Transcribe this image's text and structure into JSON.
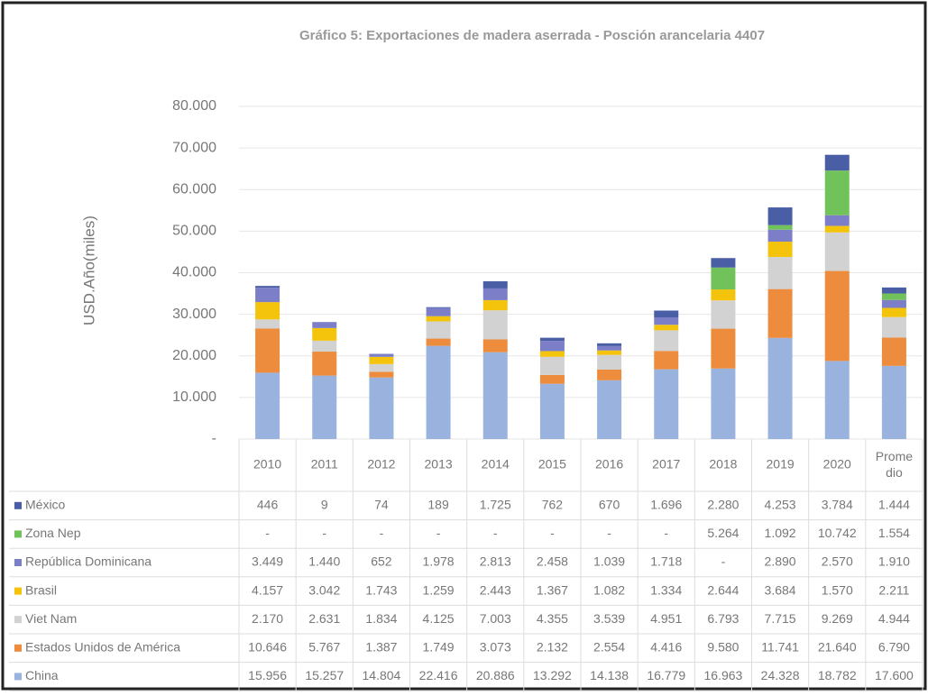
{
  "chart_data": {
    "type": "stacked_bar",
    "title": "Gráfico 5: Exportaciones de madera aserrada - Posción arancelaria 4407",
    "ylabel": "USD.Año(miles)",
    "categories": [
      "2010",
      "2011",
      "2012",
      "2013",
      "2014",
      "2015",
      "2016",
      "2017",
      "2018",
      "2019",
      "2020",
      "Promedio"
    ],
    "ylim": [
      0,
      80000
    ],
    "yticks": [
      {
        "value": 0,
        "label": "-"
      },
      {
        "value": 10000,
        "label": "10.000"
      },
      {
        "value": 20000,
        "label": "20.000"
      },
      {
        "value": 30000,
        "label": "30.000"
      },
      {
        "value": 40000,
        "label": "40.000"
      },
      {
        "value": 50000,
        "label": "50.000"
      },
      {
        "value": 60000,
        "label": "60.000"
      },
      {
        "value": 70000,
        "label": "70.000"
      },
      {
        "value": 80000,
        "label": "80.000"
      }
    ],
    "grid": true,
    "series": [
      {
        "name": "China",
        "color": "#9ab2de",
        "values": [
          15956,
          15257,
          14804,
          22416,
          20886,
          13292,
          14138,
          16779,
          16963,
          24328,
          18782,
          17600
        ],
        "value_labels": [
          "15.956",
          "15.257",
          "14.804",
          "22.416",
          "20.886",
          "13.292",
          "14.138",
          "16.779",
          "16.963",
          "24.328",
          "18.782",
          "17.600"
        ]
      },
      {
        "name": "Estados Unidos de América",
        "color": "#ec8c3c",
        "values": [
          10646,
          5767,
          1387,
          1749,
          3073,
          2132,
          2554,
          4416,
          9580,
          11741,
          21640,
          6790
        ],
        "value_labels": [
          "10.646",
          "5.767",
          "1.387",
          "1.749",
          "3.073",
          "2.132",
          "2.554",
          "4.416",
          "9.580",
          "11.741",
          "21.640",
          "6.790"
        ]
      },
      {
        "name": "Viet Nam",
        "color": "#d2d2d2",
        "values": [
          2170,
          2631,
          1834,
          4125,
          7003,
          4355,
          3539,
          4951,
          6793,
          7715,
          9269,
          4944
        ],
        "value_labels": [
          "2.170",
          "2.631",
          "1.834",
          "4.125",
          "7.003",
          "4.355",
          "3.539",
          "4.951",
          "6.793",
          "7.715",
          "9.269",
          "4.944"
        ]
      },
      {
        "name": "Brasil",
        "color": "#f4c40c",
        "values": [
          4157,
          3042,
          1743,
          1259,
          2443,
          1367,
          1082,
          1334,
          2644,
          3684,
          1570,
          2211
        ],
        "value_labels": [
          "4.157",
          "3.042",
          "1.743",
          "1.259",
          "2.443",
          "1.367",
          "1.082",
          "1.334",
          "2.644",
          "3.684",
          "1.570",
          "2.211"
        ]
      },
      {
        "name": "República Dominicana",
        "color": "#7c7fc8",
        "values": [
          3449,
          1440,
          652,
          1978,
          2813,
          2458,
          1039,
          1718,
          null,
          2890,
          2570,
          1910
        ],
        "value_labels": [
          "3.449",
          "1.440",
          "652",
          "1.978",
          "2.813",
          "2.458",
          "1.039",
          "1.718",
          "-",
          "2.890",
          "2.570",
          "1.910"
        ]
      },
      {
        "name": "Zona Nep",
        "color": "#72c25c",
        "values": [
          null,
          null,
          null,
          null,
          null,
          null,
          null,
          null,
          5264,
          1092,
          10742,
          1554
        ],
        "value_labels": [
          "-",
          "-",
          "-",
          "-",
          "-",
          "-",
          "-",
          "-",
          "5.264",
          "1.092",
          "10.742",
          "1.554"
        ]
      },
      {
        "name": "México",
        "color": "#4a5ea6",
        "values": [
          446,
          9,
          74,
          189,
          1725,
          762,
          670,
          1696,
          2280,
          4253,
          3784,
          1444
        ],
        "value_labels": [
          "446",
          "9",
          "74",
          "189",
          "1.725",
          "762",
          "670",
          "1.696",
          "2.280",
          "4.253",
          "3.784",
          "1.444"
        ]
      }
    ]
  }
}
